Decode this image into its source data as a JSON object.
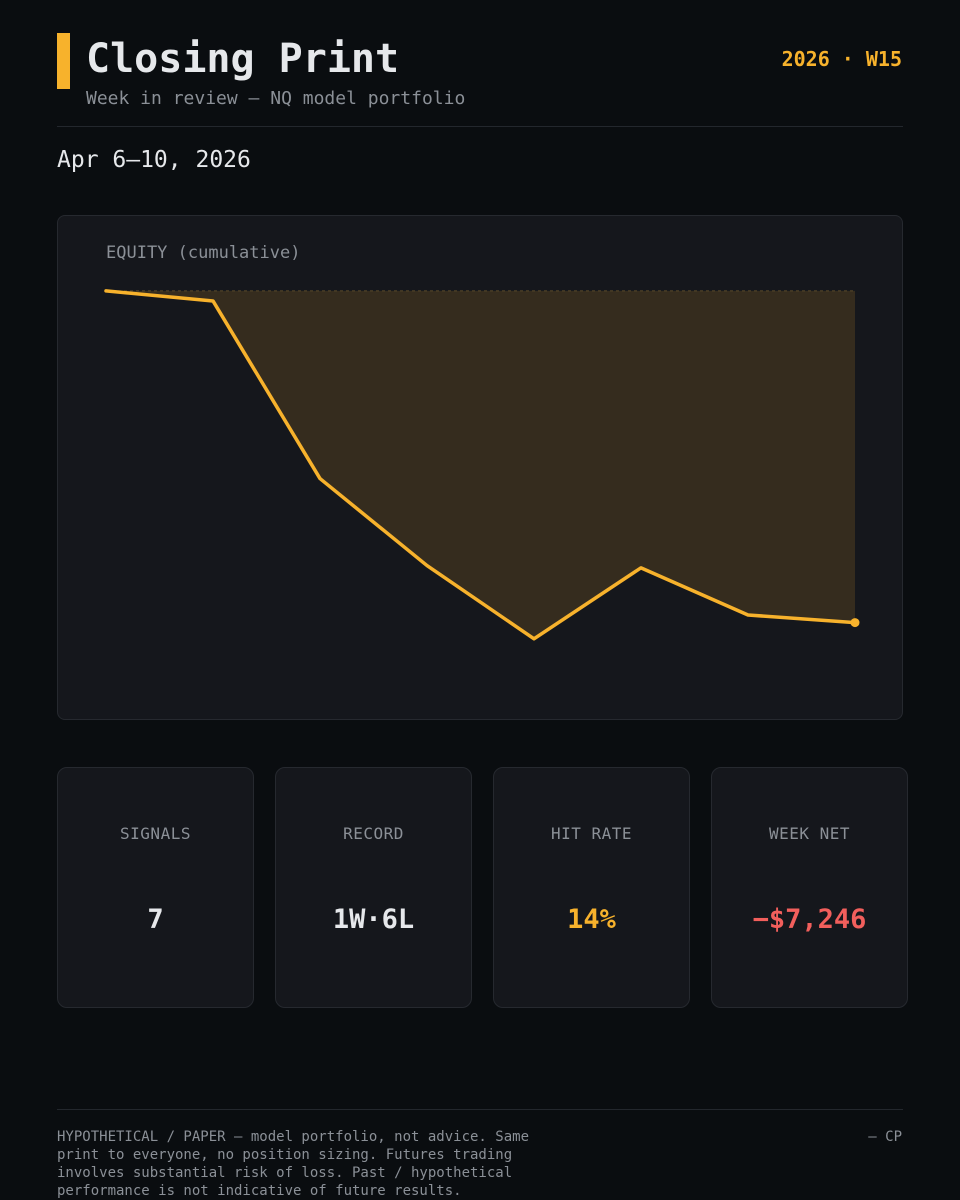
{
  "header": {
    "title": "Closing Print",
    "subtitle": "Week in review — NQ model portfolio",
    "week_tag": "2026 · W15"
  },
  "date_range": "Apr 6–10, 2026",
  "colors": {
    "accent": "#f7b22c",
    "negative": "#f25f5c",
    "text": "#e6e8eb",
    "muted": "#8b9097"
  },
  "chart_data": {
    "type": "area",
    "title": "EQUITY (cumulative)",
    "xlabel": "",
    "ylabel": "",
    "baseline": 0,
    "x": [
      0,
      1,
      2,
      3,
      4,
      5,
      6,
      7
    ],
    "y": [
      0,
      -220,
      -4100,
      -6000,
      -7600,
      -6050,
      -7080,
      -7246
    ],
    "ylim": [
      -8500,
      500
    ],
    "fill": "between line and starting level",
    "end_marker": true,
    "grid": false,
    "legend": "none"
  },
  "stats": [
    {
      "label": "SIGNALS",
      "value": "7",
      "color": "#e6e8eb"
    },
    {
      "label": "RECORD",
      "value": "1W·6L",
      "color": "#e6e8eb"
    },
    {
      "label": "HIT RATE",
      "value": "14%",
      "color": "#f7b22c"
    },
    {
      "label": "WEEK NET",
      "value": "−$7,246",
      "color": "#f25f5c"
    }
  ],
  "footer": {
    "disclaimer": "HYPOTHETICAL / PAPER — model portfolio, not advice. Same print to everyone, no position sizing. Futures trading involves substantial risk of loss. Past / hypothetical performance is not indicative of future results.",
    "signoff": "— CP"
  }
}
